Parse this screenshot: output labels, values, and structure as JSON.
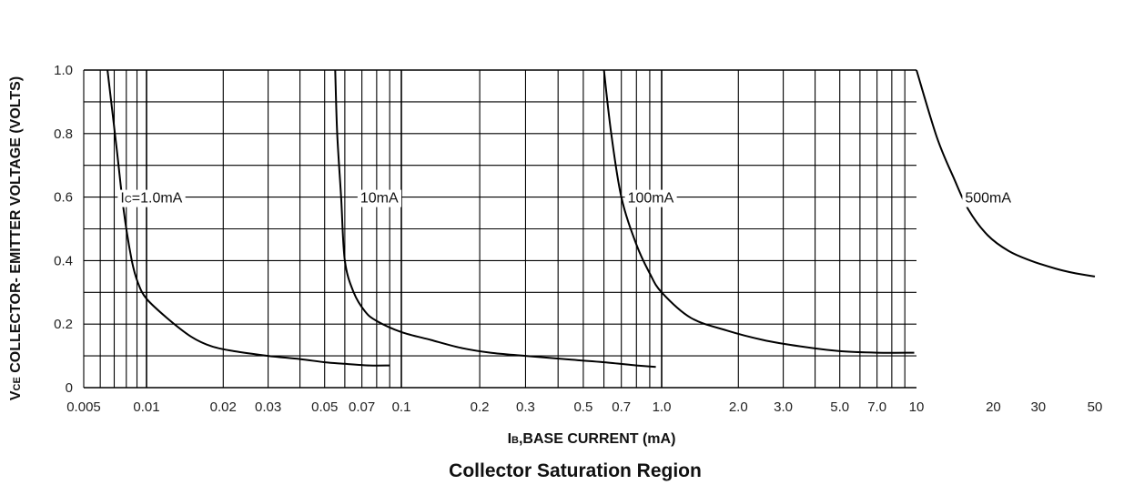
{
  "chart_data": {
    "type": "line",
    "title": "Collector Saturation Region",
    "xlabel": "Iʙ,BASE  CURRENT (mA)",
    "xlabel_parts": {
      "main": "I",
      "sub": "B",
      "rest": ",BASE  CURRENT (mA)"
    },
    "ylabel": "VCE COLLECTOR- EMITTER VOLTAGE (VOLTS)",
    "ylabel_parts": {
      "main": "V",
      "sub": "CE",
      "rest": " COLLECTOR- EMITTER VOLTAGE (VOLTS)"
    },
    "x_scale": "log",
    "x_ticks": [
      {
        "value": 0.005,
        "label": "0.005"
      },
      {
        "value": 0.01,
        "label": "0.01"
      },
      {
        "value": 0.02,
        "label": "0.02"
      },
      {
        "value": 0.03,
        "label": "0.03"
      },
      {
        "value": 0.05,
        "label": "0.05"
      },
      {
        "value": 0.07,
        "label": "0.07"
      },
      {
        "value": 0.1,
        "label": "0.1"
      },
      {
        "value": 0.2,
        "label": "0.2"
      },
      {
        "value": 0.3,
        "label": "0.3"
      },
      {
        "value": 0.5,
        "label": "0.5"
      },
      {
        "value": 0.7,
        "label": "0.7"
      },
      {
        "value": 1.0,
        "label": "1.0"
      },
      {
        "value": 2.0,
        "label": "2.0"
      },
      {
        "value": 3.0,
        "label": "3.0"
      },
      {
        "value": 5.0,
        "label": "5.0"
      },
      {
        "value": 7.0,
        "label": "7.0"
      },
      {
        "value": 10,
        "label": "10"
      },
      {
        "value": 20,
        "label": "20"
      },
      {
        "value": 30,
        "label": "30"
      },
      {
        "value": 50,
        "label": "50"
      }
    ],
    "y_ticks": [
      {
        "value": 0,
        "label": "0"
      },
      {
        "value": 0.2,
        "label": "0.2"
      },
      {
        "value": 0.4,
        "label": "0.4"
      },
      {
        "value": 0.6,
        "label": "0.6"
      },
      {
        "value": 0.8,
        "label": "0.8"
      },
      {
        "value": 1.0,
        "label": "1.0"
      }
    ],
    "xlim": [
      0.005,
      50
    ],
    "ylim": [
      0,
      1.0
    ],
    "grid": true,
    "series": [
      {
        "name": "Ic=1.0mA",
        "label_parts": {
          "main": "I",
          "sub": "C",
          "rest": "=1.0mA"
        },
        "label_at": {
          "x": 0.0075,
          "y": 0.6
        },
        "points": [
          [
            0.0065,
            1.0
          ],
          [
            0.0072,
            0.75
          ],
          [
            0.0078,
            0.55
          ],
          [
            0.0085,
            0.4
          ],
          [
            0.0091,
            0.33
          ],
          [
            0.01,
            0.28
          ],
          [
            0.012,
            0.22
          ],
          [
            0.015,
            0.16
          ],
          [
            0.018,
            0.13
          ],
          [
            0.022,
            0.115
          ],
          [
            0.03,
            0.1
          ],
          [
            0.04,
            0.09
          ],
          [
            0.05,
            0.08
          ],
          [
            0.06,
            0.075
          ],
          [
            0.075,
            0.07
          ],
          [
            0.09,
            0.07
          ]
        ]
      },
      {
        "name": "10mA",
        "label_parts": {
          "main": "10mA",
          "sub": "",
          "rest": ""
        },
        "label_at": {
          "x": 0.069,
          "y": 0.6
        },
        "points": [
          [
            0.055,
            1.0
          ],
          [
            0.056,
            0.8
          ],
          [
            0.058,
            0.6
          ],
          [
            0.06,
            0.4
          ],
          [
            0.065,
            0.3
          ],
          [
            0.072,
            0.24
          ],
          [
            0.08,
            0.21
          ],
          [
            0.1,
            0.175
          ],
          [
            0.13,
            0.15
          ],
          [
            0.17,
            0.125
          ],
          [
            0.22,
            0.11
          ],
          [
            0.3,
            0.1
          ],
          [
            0.45,
            0.088
          ],
          [
            0.6,
            0.08
          ],
          [
            0.8,
            0.07
          ],
          [
            0.95,
            0.065
          ]
        ]
      },
      {
        "name": "100mA",
        "label_parts": {
          "main": "100mA",
          "sub": "",
          "rest": ""
        },
        "label_at": {
          "x": 0.74,
          "y": 0.6
        },
        "points": [
          [
            0.6,
            1.0
          ],
          [
            0.64,
            0.8
          ],
          [
            0.7,
            0.6
          ],
          [
            0.8,
            0.45
          ],
          [
            0.9,
            0.36
          ],
          [
            1.0,
            0.3
          ],
          [
            1.3,
            0.22
          ],
          [
            1.8,
            0.18
          ],
          [
            2.5,
            0.15
          ],
          [
            3.5,
            0.13
          ],
          [
            5.0,
            0.115
          ],
          [
            7.0,
            0.11
          ],
          [
            9.8,
            0.11
          ]
        ]
      },
      {
        "name": "500mA",
        "label_parts": {
          "main": "500mA",
          "sub": "",
          "rest": ""
        },
        "label_at": {
          "x": 15.5,
          "y": 0.6
        },
        "points": [
          [
            10,
            1.0
          ],
          [
            12,
            0.79
          ],
          [
            14,
            0.66
          ],
          [
            16,
            0.56
          ],
          [
            19,
            0.48
          ],
          [
            23,
            0.43
          ],
          [
            28,
            0.4
          ],
          [
            35,
            0.375
          ],
          [
            42,
            0.36
          ],
          [
            50,
            0.35
          ]
        ]
      }
    ]
  },
  "colors": {
    "line": "#000000",
    "text": "#111111"
  }
}
